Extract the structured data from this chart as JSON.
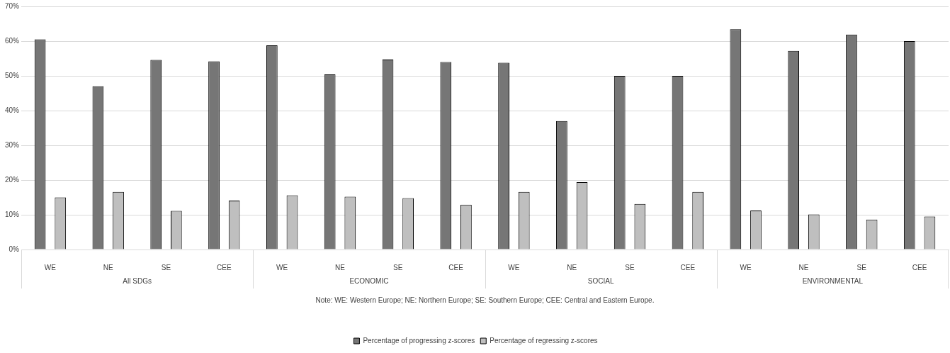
{
  "chart_data": {
    "type": "bar",
    "categories": [
      "WE",
      "NE",
      "SE",
      "CEE",
      "WE",
      "NE",
      "SE",
      "CEE",
      "WE",
      "NE",
      "SE",
      "CEE",
      "WE",
      "NE",
      "SE",
      "CEE"
    ],
    "series": [
      {
        "name": "Percentage of progressing z-scores",
        "color": "#767676",
        "values": [
          60.5,
          47,
          54.6,
          54.2,
          58.8,
          50.4,
          54.7,
          54,
          53.8,
          37,
          50,
          50,
          63.4,
          57.2,
          61.9,
          60
        ]
      },
      {
        "name": "Percentage of regressing z-scores",
        "color": "#bfbfbf",
        "values": [
          15,
          16.6,
          11.1,
          14.1,
          15.6,
          15.2,
          14.8,
          12.9,
          16.6,
          19.4,
          13.1,
          16.6,
          11.2,
          10.1,
          8.6,
          9.5
        ]
      }
    ],
    "ylim": [
      0,
      70
    ],
    "yticks": [
      {
        "value": 0,
        "label": "0%"
      },
      {
        "value": 10,
        "label": "10%"
      },
      {
        "value": 20,
        "label": "20%"
      },
      {
        "value": 30,
        "label": "30%"
      },
      {
        "value": 40,
        "label": "40%"
      },
      {
        "value": 50,
        "label": "50%"
      },
      {
        "value": 60,
        "label": "60%"
      },
      {
        "value": 70,
        "label": "70%"
      }
    ],
    "grid": "y",
    "legend": "bottom",
    "annotations": [
      "All SDGs",
      "ECONOMIC",
      "SOCIAL",
      "ENVIRONMENTAL",
      "Note: WE: Western Europe; NE: Northern Europe; SE: Southern Europe; CEE: Central and Eastern Europe."
    ]
  }
}
